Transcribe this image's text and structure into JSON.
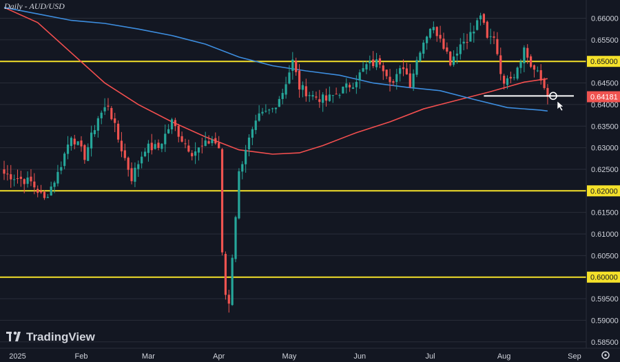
{
  "chart_data": {
    "type": "candlestick",
    "title": "Daily - AUD/USD",
    "symbol": "AUD/USD",
    "timeframe": "Daily",
    "ylim": [
      0.584,
      0.663
    ],
    "y_ticks": [
      "0.58500",
      "0.59000",
      "0.59500",
      "0.60000",
      "0.60500",
      "0.61000",
      "0.61500",
      "0.62000",
      "0.62500",
      "0.63000",
      "0.63500",
      "0.64000",
      "0.64500",
      "0.65000",
      "0.65500",
      "0.66000"
    ],
    "x_labels": [
      {
        "label": "2025",
        "i": 4
      },
      {
        "label": "Feb",
        "i": 23
      },
      {
        "label": "Mar",
        "i": 43
      },
      {
        "label": "Apr",
        "i": 64
      },
      {
        "label": "May",
        "i": 85
      },
      {
        "label": "Jun",
        "i": 106
      },
      {
        "label": "Jul",
        "i": 127
      },
      {
        "label": "Aug",
        "i": 149
      },
      {
        "label": "Sep",
        "i": 170
      }
    ],
    "last_price": "0.64181",
    "horizontal_levels": [
      {
        "value": 0.65,
        "label": "0.65000",
        "color": "#f5e12a"
      },
      {
        "value": 0.62,
        "label": "0.62000",
        "color": "#f5e12a"
      },
      {
        "value": 0.6,
        "label": "0.60000",
        "color": "#f5e12a"
      }
    ],
    "support_segment": {
      "value": 0.642,
      "color": "#ffffff"
    },
    "series": [
      {
        "name": "",
        "kind": "ma",
        "color": "#f44f4f",
        "points": [
          [
            0,
            0.6625
          ],
          [
            10,
            0.659
          ],
          [
            20,
            0.652
          ],
          [
            30,
            0.645
          ],
          [
            40,
            0.64
          ],
          [
            50,
            0.636
          ],
          [
            60,
            0.6325
          ],
          [
            70,
            0.6295
          ],
          [
            80,
            0.6285
          ],
          [
            88,
            0.6288
          ],
          [
            95,
            0.6305
          ],
          [
            105,
            0.6335
          ],
          [
            115,
            0.636
          ],
          [
            125,
            0.639
          ],
          [
            135,
            0.641
          ],
          [
            145,
            0.643
          ],
          [
            155,
            0.6452
          ],
          [
            162,
            0.646
          ]
        ]
      },
      {
        "name": "",
        "kind": "ma",
        "color": "#3d8ee0",
        "points": [
          [
            0,
            0.6625
          ],
          [
            10,
            0.661
          ],
          [
            20,
            0.6595
          ],
          [
            30,
            0.6588
          ],
          [
            40,
            0.6575
          ],
          [
            50,
            0.656
          ],
          [
            60,
            0.654
          ],
          [
            70,
            0.651
          ],
          [
            80,
            0.649
          ],
          [
            90,
            0.6478
          ],
          [
            100,
            0.6468
          ],
          [
            110,
            0.645
          ],
          [
            120,
            0.644
          ],
          [
            130,
            0.6432
          ],
          [
            140,
            0.6412
          ],
          [
            150,
            0.6393
          ],
          [
            160,
            0.6387
          ],
          [
            162,
            0.6385
          ]
        ]
      }
    ],
    "ohlc_anchors": [
      [
        0,
        0.624
      ],
      [
        4,
        0.623
      ],
      [
        8,
        0.622
      ],
      [
        12,
        0.618
      ],
      [
        16,
        0.624
      ],
      [
        20,
        0.633
      ],
      [
        24,
        0.628
      ],
      [
        28,
        0.637
      ],
      [
        31,
        0.64
      ],
      [
        34,
        0.632
      ],
      [
        38,
        0.623
      ],
      [
        42,
        0.63
      ],
      [
        46,
        0.63
      ],
      [
        50,
        0.636
      ],
      [
        53,
        0.632
      ],
      [
        56,
        0.629
      ],
      [
        59,
        0.63
      ],
      [
        62,
        0.632
      ],
      [
        64,
        0.63
      ],
      [
        65,
        0.605
      ],
      [
        66,
        0.596
      ],
      [
        67,
        0.594
      ],
      [
        68,
        0.605
      ],
      [
        70,
        0.624
      ],
      [
        72,
        0.63
      ],
      [
        76,
        0.637
      ],
      [
        80,
        0.639
      ],
      [
        83,
        0.643
      ],
      [
        86,
        0.65
      ],
      [
        88,
        0.644
      ],
      [
        92,
        0.642
      ],
      [
        96,
        0.641
      ],
      [
        100,
        0.643
      ],
      [
        104,
        0.645
      ],
      [
        108,
        0.649
      ],
      [
        112,
        0.65
      ],
      [
        116,
        0.645
      ],
      [
        119,
        0.649
      ],
      [
        121,
        0.645
      ],
      [
        124,
        0.653
      ],
      [
        127,
        0.658
      ],
      [
        130,
        0.656
      ],
      [
        133,
        0.65
      ],
      [
        136,
        0.654
      ],
      [
        140,
        0.657
      ],
      [
        142,
        0.661
      ],
      [
        144,
        0.655
      ],
      [
        146,
        0.656
      ],
      [
        148,
        0.648
      ],
      [
        149,
        0.644
      ],
      [
        150,
        0.647
      ],
      [
        152,
        0.647
      ],
      [
        155,
        0.653
      ],
      [
        157,
        0.649
      ],
      [
        159,
        0.647
      ],
      [
        161,
        0.644
      ],
      [
        162,
        0.6418
      ]
    ],
    "colors": {
      "up": "#26a69a",
      "down": "#ef5350",
      "background": "#131722",
      "grid": "#2a2e39",
      "text": "#d1d4dc",
      "price_badge": "#ef5350"
    }
  },
  "watermark": {
    "brand": "TradingView"
  }
}
